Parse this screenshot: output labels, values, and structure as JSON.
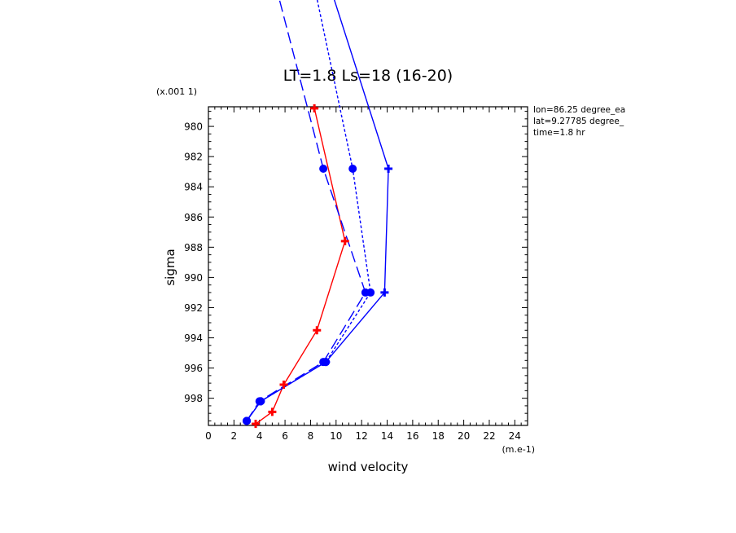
{
  "chart_data": {
    "type": "line",
    "title": "LT=1.8  Ls=18 (16-20)",
    "xlabel": "wind velocity",
    "ylabel": "sigma",
    "x_unit": "(m.e-1)",
    "y_multiplier": "(x.001 1)",
    "xlim": [
      0,
      25
    ],
    "ylim": [
      999.8,
      978.7
    ],
    "x_ticks": [
      "0",
      "2",
      "4",
      "6",
      "8",
      "10",
      "12",
      "14",
      "16",
      "18",
      "20",
      "22",
      "24"
    ],
    "y_ticks": [
      "980",
      "982",
      "984",
      "986",
      "988",
      "990",
      "992",
      "994",
      "996",
      "998"
    ],
    "info_text": [
      "lon=86.25 degree_ea",
      "lat=9.27785 degree_",
      "time=1.8 hr"
    ],
    "colors": {
      "red": "#ff0000",
      "blue": "#0000ff"
    },
    "series": [
      {
        "style": "solid",
        "color": "#ff0000",
        "marker": "plus",
        "points": [
          [
            8.3,
            978.8
          ],
          [
            10.7,
            987.6
          ],
          [
            8.5,
            993.5
          ],
          [
            5.9,
            997.1
          ],
          [
            5.0,
            998.9
          ],
          [
            3.7,
            999.7
          ]
        ]
      },
      {
        "style": "solid",
        "color": "#0000ff",
        "marker": "plus",
        "points": [
          [
            8.3,
            967.5
          ],
          [
            14.1,
            982.8
          ],
          [
            13.8,
            991.0
          ],
          [
            9.2,
            995.6
          ],
          [
            4.1,
            998.2
          ],
          [
            3.0,
            999.5
          ]
        ]
      },
      {
        "style": "dotted",
        "color": "#0000ff",
        "marker": "dot",
        "points": [
          [
            7.5,
            967.5
          ],
          [
            11.3,
            982.8
          ],
          [
            12.7,
            991.0
          ],
          [
            9.2,
            995.6
          ],
          [
            4.1,
            998.2
          ],
          [
            3.0,
            999.5
          ]
        ]
      },
      {
        "style": "dashed",
        "color": "#0000ff",
        "marker": "dot",
        "points": [
          [
            4.3,
            967.5
          ],
          [
            9.0,
            982.8
          ],
          [
            12.3,
            991.0
          ],
          [
            9.0,
            995.6
          ],
          [
            4.0,
            998.2
          ],
          [
            3.0,
            999.5
          ]
        ]
      }
    ]
  }
}
